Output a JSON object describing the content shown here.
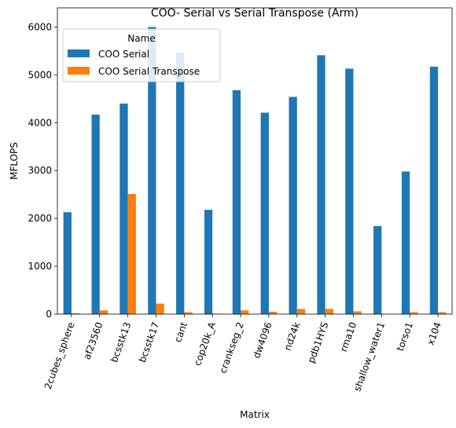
{
  "chart_data": {
    "type": "bar",
    "title": "COO- Serial vs Serial Transpose (Arm)",
    "xlabel": "Matrix",
    "ylabel": "MFLOPS",
    "ylim": [
      0,
      6400
    ],
    "yticks": [
      0,
      1000,
      2000,
      3000,
      4000,
      5000,
      6000
    ],
    "grid": false,
    "legend": {
      "title": "Name",
      "placement": "top-left"
    },
    "categories": [
      "2cubes_sphere",
      "af23560",
      "bcsstk13",
      "bcsstk17",
      "cant",
      "cop20k_A",
      "crankseg_2",
      "dw4096",
      "nd24k",
      "pdb1HYS",
      "rma10",
      "shallow_water1",
      "torso1",
      "x104"
    ],
    "series": [
      {
        "name": "COO Serial",
        "color": "#1f77b4",
        "values": [
          2130,
          4170,
          4400,
          6000,
          5460,
          2180,
          4680,
          4210,
          4540,
          5410,
          5130,
          1840,
          2980,
          5170
        ]
      },
      {
        "name": "COO Serial Transpose",
        "color": "#ff7f0e",
        "values": [
          20,
          80,
          2510,
          220,
          40,
          10,
          80,
          50,
          110,
          110,
          60,
          0,
          40,
          40
        ]
      }
    ]
  }
}
